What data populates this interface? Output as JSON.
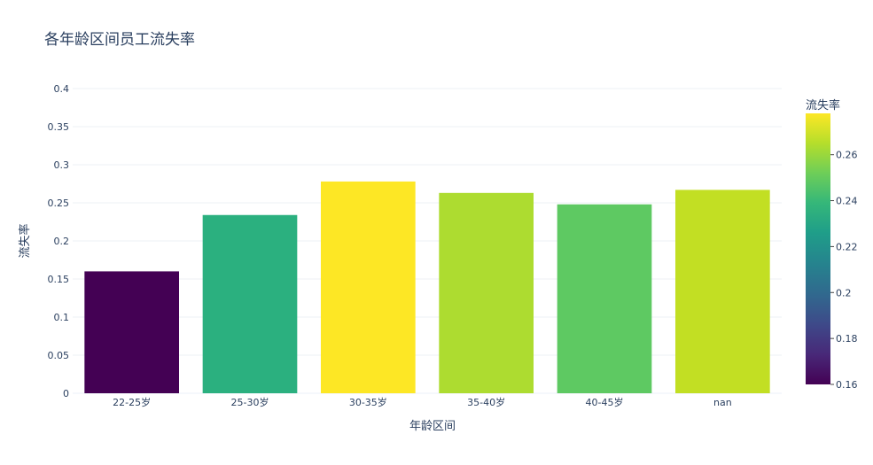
{
  "chart_data": {
    "type": "bar",
    "title": "各年龄区间员工流失率",
    "xlabel": "年龄区间",
    "ylabel": "流失率",
    "categories": [
      "22-25岁",
      "25-30岁",
      "30-35岁",
      "35-40岁",
      "40-45岁",
      "nan"
    ],
    "values": [
      0.16,
      0.234,
      0.278,
      0.263,
      0.248,
      0.267
    ],
    "ylim": [
      0,
      0.4
    ],
    "yticks": [
      0,
      0.05,
      0.1,
      0.15,
      0.2,
      0.25,
      0.3,
      0.35,
      0.4
    ],
    "ytick_labels": [
      "0",
      "0.05",
      "0.1",
      "0.15",
      "0.2",
      "0.25",
      "0.3",
      "0.35",
      "0.4"
    ],
    "grid": true,
    "colorbar": {
      "title": "流失率",
      "colorscale": "Viridis",
      "range": [
        0.16,
        0.278
      ],
      "ticks": [
        0.16,
        0.18,
        0.2,
        0.22,
        0.24,
        0.26
      ],
      "tick_labels": [
        "0.16",
        "0.18",
        "0.2",
        "0.22",
        "0.24",
        "0.26"
      ]
    },
    "bar_colors": [
      "#440154",
      "#2bb07f",
      "#fde725",
      "#addc30",
      "#5ec962",
      "#c2df23"
    ]
  }
}
